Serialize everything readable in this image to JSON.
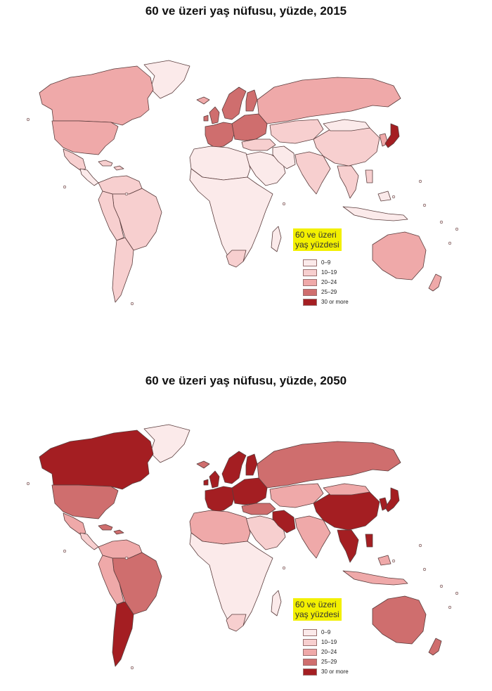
{
  "colors": {
    "c0": "#fbeaea",
    "c1": "#f7cfcf",
    "c2": "#efa9a9",
    "c3": "#cf6e6e",
    "c4": "#a41e22",
    "border": "#5a3c3c",
    "highlight": "#f3f000"
  },
  "maps": [
    {
      "title": "60 ve üzeri yaş nüfusu, yüzde, 2015",
      "legend": {
        "title_lines": [
          "60 ve üzeri",
          "yaş yüzdesi"
        ],
        "items": [
          "0–9",
          "10–19",
          "20–24",
          "25–29",
          "30 or more"
        ]
      },
      "regions": {
        "canada": 2,
        "greenland": 0,
        "usa": 2,
        "mexico": 1,
        "central_america": 0,
        "caribbean": 1,
        "south_america_north": 1,
        "brazil": 1,
        "andes": 1,
        "southern_cone": 1,
        "iceland": 2,
        "uk_ireland": 3,
        "scandinavia": 3,
        "finland": 3,
        "western_europe": 3,
        "eastern_europe": 3,
        "russia": 2,
        "turkey_caucasus": 1,
        "middle_east": 0,
        "iran": 0,
        "central_asia": 1,
        "north_africa": 0,
        "africa": 0,
        "south_africa": 1,
        "madagascar": 0,
        "south_asia": 1,
        "china": 1,
        "mongolia": 0,
        "korea": 2,
        "japan": 4,
        "southeast_asia": 1,
        "indonesia": 0,
        "australia": 2,
        "new_zealand": 2
      }
    },
    {
      "title": "60 ve üzeri yaş nüfusu, yüzde, 2050",
      "legend": {
        "title_lines": [
          "60 ve üzeri",
          "yaş yüzdesi"
        ],
        "items": [
          "0–9",
          "10–19",
          "20–24",
          "25–29",
          "30 or more"
        ]
      },
      "regions": {
        "canada": 4,
        "greenland": 0,
        "usa": 3,
        "mexico": 2,
        "central_america": 1,
        "caribbean": 3,
        "south_america_north": 2,
        "brazil": 3,
        "andes": 2,
        "southern_cone": 4,
        "iceland": 3,
        "uk_ireland": 4,
        "scandinavia": 4,
        "finland": 4,
        "western_europe": 4,
        "eastern_europe": 4,
        "russia": 3,
        "turkey_caucasus": 3,
        "middle_east": 1,
        "iran": 4,
        "central_asia": 2,
        "north_africa": 2,
        "africa": 0,
        "south_africa": 1,
        "madagascar": 0,
        "south_asia": 2,
        "china": 4,
        "mongolia": 2,
        "korea": 4,
        "japan": 4,
        "southeast_asia": 4,
        "indonesia": 2,
        "australia": 3,
        "new_zealand": 3
      }
    }
  ]
}
